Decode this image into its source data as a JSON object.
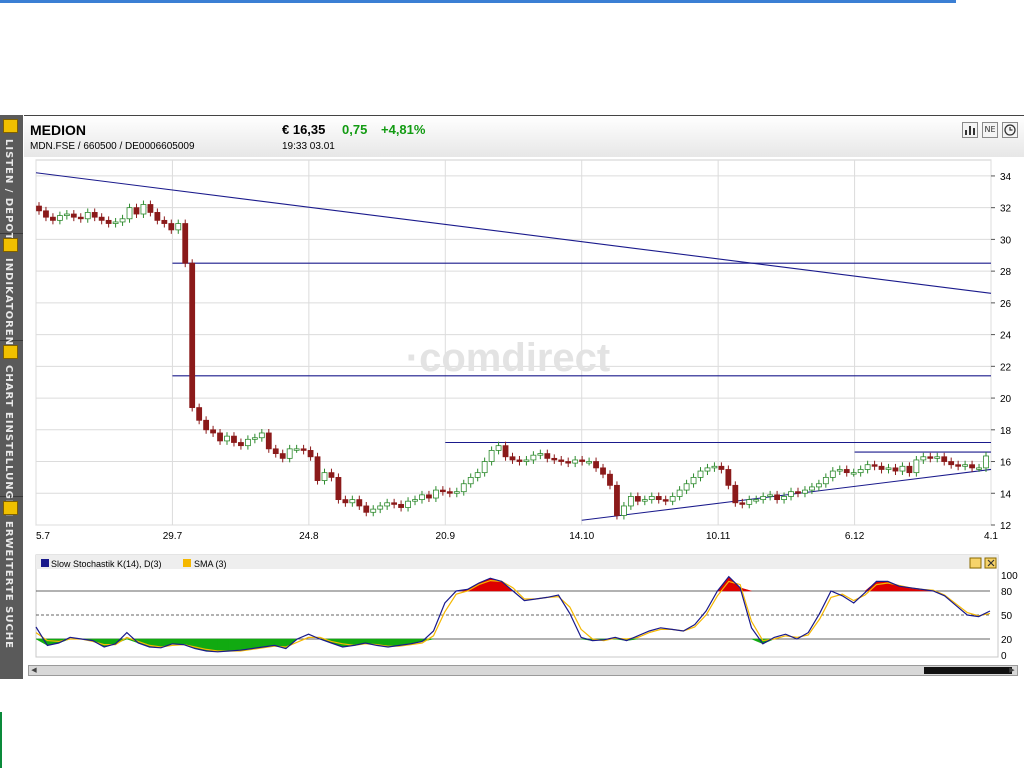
{
  "header": {
    "name": "MEDION",
    "ids": "MDN.FSE  /  660500  /  DE0006605009",
    "price": "€ 16,35",
    "change": "0,75",
    "change_pct": "+4,81%",
    "time": "19:33   03.01"
  },
  "sidebar": {
    "tabs": [
      {
        "label": "LISTEN / DEPOT",
        "icon": "folder-icon"
      },
      {
        "label": "INDIKATOREN",
        "icon": "indicator-icon"
      },
      {
        "label": "CHART EINSTELLUNGEN",
        "icon": "settings-list-icon"
      },
      {
        "label": "ERWEITERTE SUCHE",
        "icon": "search-icon"
      }
    ]
  },
  "toolbar": {
    "icons": [
      "bar-chart-icon",
      "news-icon",
      "clock-icon"
    ],
    "labels": [
      "",
      "NE",
      ""
    ]
  },
  "watermark": "·comdirect",
  "colors": {
    "up_candle": "#2e8b2e",
    "down_candle": "#8b1a1a",
    "trendline": "#1a1a8c",
    "stoch_k": "#1a1a8c",
    "stoch_d": "#f5b800",
    "overbought_fill": "#dd0000",
    "oversold_fill": "#11aa11"
  },
  "chart_data": [
    {
      "type": "candlestick",
      "x_tick_labels": [
        "5.7",
        "29.7",
        "24.8",
        "20.9",
        "14.10",
        "10.11",
        "6.12",
        "4.1"
      ],
      "y_ticks": [
        12,
        14,
        16,
        18,
        20,
        22,
        24,
        26,
        28,
        30,
        32,
        34
      ],
      "ylim": [
        12,
        34.5
      ],
      "grid": true,
      "close_series": [
        31.8,
        31.4,
        31.2,
        31.5,
        31.6,
        31.4,
        31.3,
        31.7,
        31.4,
        31.2,
        31.0,
        31.1,
        31.3,
        32.0,
        31.6,
        32.2,
        31.7,
        31.2,
        31.0,
        30.6,
        31.0,
        28.5,
        19.4,
        18.6,
        18.0,
        17.8,
        17.3,
        17.6,
        17.2,
        17.0,
        17.4,
        17.5,
        17.8,
        16.8,
        16.5,
        16.2,
        16.8,
        16.8,
        16.7,
        16.3,
        14.8,
        15.3,
        15.0,
        13.6,
        13.4,
        13.6,
        13.2,
        12.8,
        13.0,
        13.2,
        13.4,
        13.3,
        13.1,
        13.5,
        13.6,
        13.9,
        13.7,
        14.2,
        14.1,
        14.0,
        14.1,
        14.6,
        15.0,
        15.3,
        16.0,
        16.7,
        17.0,
        16.3,
        16.1,
        16.0,
        16.1,
        16.4,
        16.5,
        16.2,
        16.1,
        16.0,
        15.9,
        16.1,
        16.0,
        16.0,
        15.6,
        15.2,
        14.5,
        12.6,
        13.2,
        13.8,
        13.5,
        13.6,
        13.8,
        13.6,
        13.5,
        13.8,
        14.2,
        14.6,
        15.0,
        15.4,
        15.6,
        15.7,
        15.5,
        14.5,
        13.4,
        13.3,
        13.6,
        13.6,
        13.8,
        13.9,
        13.6,
        13.8,
        14.1,
        14.0,
        14.2,
        14.4,
        14.6,
        15.0,
        15.4,
        15.5,
        15.3,
        15.3,
        15.5,
        15.8,
        15.7,
        15.5,
        15.6,
        15.4,
        15.7,
        15.3,
        16.1,
        16.3,
        16.2,
        16.3,
        16.0,
        15.8,
        15.7,
        15.8,
        15.6,
        15.6,
        16.35
      ],
      "trendlines": [
        {
          "from": [
            "5.7",
            34.2
          ],
          "to": [
            "4.1",
            26.6
          ]
        },
        {
          "from": [
            "29.7",
            28.5
          ],
          "to": [
            "4.1",
            28.5
          ]
        },
        {
          "from": [
            "29.7",
            21.4
          ],
          "to": [
            "4.1",
            21.4
          ]
        },
        {
          "from": [
            "20.9",
            17.2
          ],
          "to": [
            "4.1",
            17.2
          ]
        },
        {
          "from": [
            "14.10",
            12.3
          ],
          "to": [
            "4.1",
            15.5
          ]
        },
        {
          "from": [
            "6.12",
            16.6
          ],
          "to": [
            "4.1",
            16.6
          ]
        }
      ]
    },
    {
      "type": "line",
      "series": [
        {
          "name": "Slow Stochastik K(14), D(3)",
          "values": [
            35,
            12,
            15,
            22,
            20,
            18,
            10,
            14,
            28,
            15,
            10,
            9,
            14,
            13,
            8,
            5,
            4,
            5,
            6,
            8,
            10,
            12,
            8,
            20,
            26,
            20,
            15,
            10,
            12,
            15,
            12,
            10,
            12,
            14,
            17,
            30,
            65,
            80,
            82,
            90,
            96,
            92,
            80,
            68,
            70,
            72,
            75,
            52,
            22,
            18,
            19,
            22,
            18,
            24,
            30,
            34,
            32,
            30,
            38,
            55,
            80,
            98,
            84,
            34,
            14,
            22,
            26,
            20,
            28,
            52,
            80,
            74,
            65,
            78,
            92,
            92,
            86,
            84,
            82,
            80,
            74,
            62,
            50,
            48,
            55
          ]
        },
        {
          "name": "SMA (3)",
          "values": [
            28,
            18,
            17,
            20,
            20,
            17,
            13,
            13,
            22,
            17,
            12,
            10,
            12,
            13,
            10,
            7,
            5,
            5,
            5,
            7,
            9,
            11,
            10,
            16,
            22,
            22,
            17,
            14,
            12,
            14,
            13,
            11,
            11,
            13,
            15,
            24,
            54,
            76,
            80,
            88,
            93,
            92,
            84,
            70,
            70,
            72,
            73,
            60,
            32,
            20,
            18,
            21,
            20,
            22,
            28,
            32,
            32,
            30,
            35,
            50,
            74,
            92,
            88,
            42,
            18,
            20,
            24,
            22,
            25,
            45,
            72,
            76,
            68,
            75,
            88,
            90,
            87,
            84,
            82,
            81,
            75,
            64,
            53,
            49,
            52
          ]
        }
      ],
      "y_ticks": [
        0,
        20,
        50,
        80,
        100
      ],
      "ylim": [
        0,
        100
      ],
      "reference_lines": [
        20,
        50,
        80
      ]
    }
  ]
}
